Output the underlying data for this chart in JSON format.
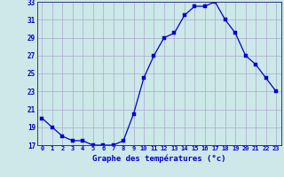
{
  "hours": [
    0,
    1,
    2,
    3,
    4,
    5,
    6,
    7,
    8,
    9,
    10,
    11,
    12,
    13,
    14,
    15,
    16,
    17,
    18,
    19,
    20,
    21,
    22,
    23
  ],
  "temps": [
    20.0,
    19.0,
    18.0,
    17.5,
    17.5,
    17.0,
    17.0,
    17.0,
    17.5,
    20.5,
    24.5,
    27.0,
    29.0,
    29.5,
    31.5,
    32.5,
    32.5,
    33.0,
    31.0,
    29.5,
    27.0,
    26.0,
    24.5,
    23.0
  ],
  "ylim": [
    17,
    33
  ],
  "yticks": [
    17,
    19,
    21,
    23,
    25,
    27,
    29,
    31,
    33
  ],
  "xtick_labels": [
    "0",
    "1",
    "2",
    "3",
    "4",
    "5",
    "6",
    "7",
    "8",
    "9",
    "10",
    "11",
    "12",
    "13",
    "14",
    "15",
    "16",
    "17",
    "18",
    "19",
    "20",
    "21",
    "22",
    "23"
  ],
  "xlabel": "Graphe des températures (°c)",
  "line_color": "#0000cc",
  "marker_color": "#0000cc",
  "bg_color": "#cce8e8",
  "grid_color": "#aaaacc",
  "tick_label_color": "#0000cc",
  "xlabel_color": "#0000cc",
  "spine_color": "#333388"
}
